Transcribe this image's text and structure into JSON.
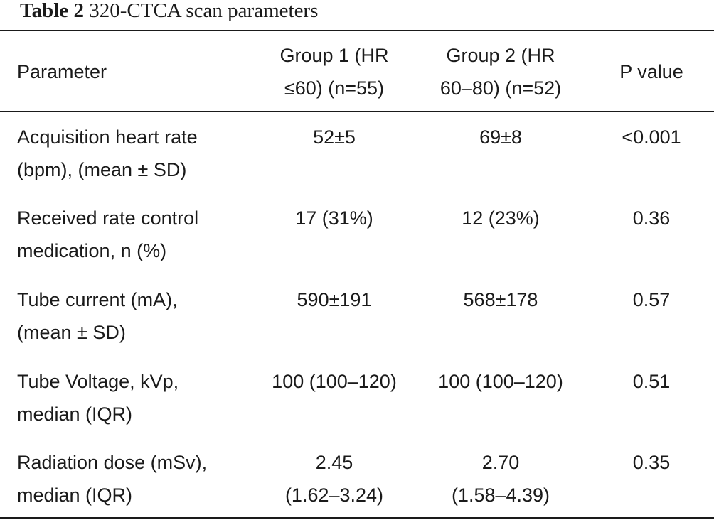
{
  "caption": {
    "label": "Table 2",
    "title": "320-CTCA scan parameters"
  },
  "table": {
    "headers": [
      "Parameter",
      "Group 1 (HR\n≤60) (n=55)",
      "Group 2 (HR\n60–80) (n=52)",
      "P value"
    ],
    "rows": [
      [
        "Acquisition heart rate\n(bpm), (mean ± SD)",
        "52±5",
        "69±8",
        "<0.001"
      ],
      [
        "Received rate control\nmedication, n (%)",
        "17 (31%)",
        "12 (23%)",
        "0.36"
      ],
      [
        "Tube current (mA),\n(mean ± SD)",
        "590±191",
        "568±178",
        "0.57"
      ],
      [
        "Tube Voltage, kVp,\nmedian (IQR)",
        "100 (100–120)",
        "100 (100–120)",
        "0.51"
      ],
      [
        "Radiation dose (mSv),\nmedian (IQR)",
        "2.45\n(1.62–3.24)",
        "2.70\n(1.58–4.39)",
        "0.35"
      ]
    ]
  }
}
